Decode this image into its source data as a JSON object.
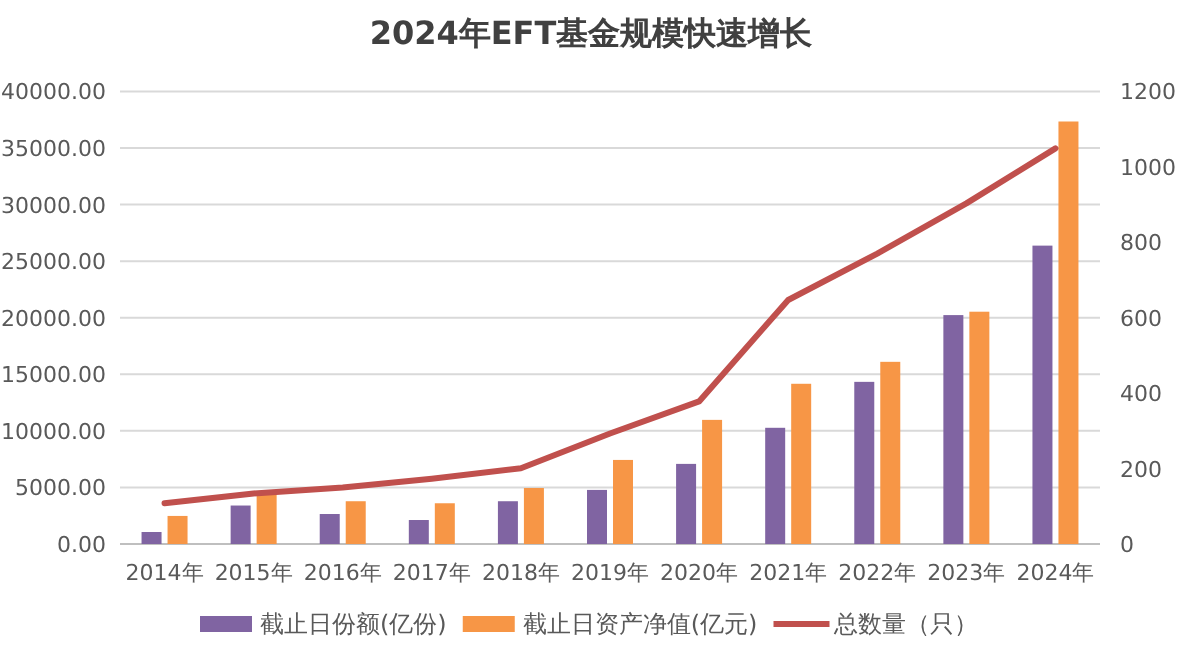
{
  "chart_data": {
    "type": "bar",
    "title": "2024年EFT基金规模快速增长",
    "categories": [
      "2014年",
      "2015年",
      "2016年",
      "2017年",
      "2018年",
      "2019年",
      "2020年",
      "2021年",
      "2022年",
      "2023年",
      "2024年"
    ],
    "series": [
      {
        "name": "截止日份额(亿份)",
        "color": "#8064a2",
        "values": [
          1060,
          3400,
          2650,
          2120,
          3780,
          4780,
          7080,
          10270,
          14330,
          20230,
          26370
        ]
      },
      {
        "name": "截止日资产净值(亿元)",
        "color": "#f79646",
        "values": [
          2480,
          4480,
          3780,
          3600,
          4950,
          7430,
          10970,
          14160,
          16100,
          20530,
          37340
        ]
      },
      {
        "name": "总数量（只）",
        "color": "#c0504d",
        "type": "line",
        "axis": "y2",
        "values": [
          108,
          134,
          150,
          173,
          201,
          293,
          378,
          647,
          770,
          903,
          1049
        ]
      }
    ],
    "ylim": [
      0,
      40000
    ],
    "yticks": [
      {
        "value": 0,
        "label": "0.00"
      },
      {
        "value": 5000,
        "label": "5000.00"
      },
      {
        "value": 10000,
        "label": "10000.00"
      },
      {
        "value": 15000,
        "label": "15000.00"
      },
      {
        "value": 20000,
        "label": "20000.00"
      },
      {
        "value": 25000,
        "label": "25000.00"
      },
      {
        "value": 30000,
        "label": "30000.00"
      },
      {
        "value": 35000,
        "label": "35000.00"
      },
      {
        "value": 40000,
        "label": "40000.00"
      }
    ],
    "y2lim": [
      0,
      1200
    ],
    "y2ticks": [
      0,
      200,
      400,
      600,
      800,
      1000,
      1200
    ],
    "grid": "y",
    "legend": "bottom",
    "marker": "none",
    "line_style": "solid"
  }
}
